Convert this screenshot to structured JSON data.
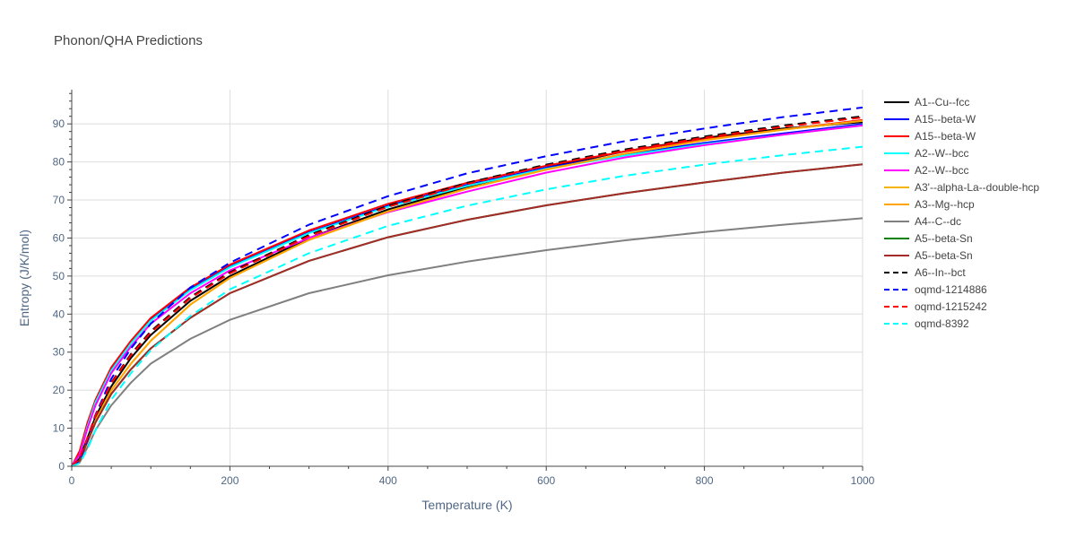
{
  "chart_data": {
    "type": "line",
    "title": "Phonon/QHA Predictions",
    "xlabel": "Temperature (K)",
    "ylabel": "Entropy (J/K/mol)",
    "xlim": [
      0,
      1000
    ],
    "ylim": [
      0,
      99
    ],
    "x_ticks": [
      0,
      200,
      400,
      600,
      800,
      1000
    ],
    "y_ticks": [
      0,
      10,
      20,
      30,
      40,
      50,
      60,
      70,
      80,
      90
    ],
    "grid": true,
    "legend_position": "right",
    "series": [
      {
        "name": "A1--Cu--fcc",
        "color": "#000000",
        "dash": "solid",
        "x": [
          0,
          10,
          20,
          30,
          50,
          75,
          100,
          150,
          200,
          300,
          400,
          500,
          600,
          700,
          800,
          900,
          1000
        ],
        "y": [
          0,
          2.0,
          7.5,
          13.0,
          21.0,
          28.5,
          34.5,
          43.5,
          50.0,
          60.0,
          67.5,
          73.5,
          78.5,
          82.8,
          86.3,
          88.8,
          90.5
        ]
      },
      {
        "name": "A15--beta-W",
        "color": "#0000ff",
        "dash": "solid",
        "x": [
          0,
          10,
          20,
          30,
          50,
          75,
          100,
          150,
          200,
          300,
          400,
          500,
          600,
          700,
          800,
          900,
          1000
        ],
        "y": [
          0,
          3.5,
          11.0,
          17.0,
          25.5,
          32.5,
          38.5,
          46.5,
          52.5,
          61.5,
          68.5,
          74.0,
          78.5,
          82.0,
          85.0,
          87.5,
          90.0
        ]
      },
      {
        "name": "A15--beta-W",
        "color": "#ff0000",
        "dash": "solid",
        "x": [
          0,
          10,
          20,
          30,
          50,
          75,
          100,
          150,
          200,
          300,
          400,
          500,
          600,
          700,
          800,
          900,
          1000
        ],
        "y": [
          0,
          4.0,
          11.5,
          17.5,
          26.0,
          33.0,
          39.0,
          47.0,
          53.0,
          62.0,
          69.0,
          74.5,
          79.0,
          82.8,
          86.0,
          88.5,
          91.0
        ]
      },
      {
        "name": "A2--W--bcc",
        "color": "#00ffff",
        "dash": "solid",
        "x": [
          0,
          10,
          20,
          30,
          50,
          75,
          100,
          150,
          200,
          300,
          400,
          500,
          600,
          700,
          800,
          900,
          1000
        ],
        "y": [
          0,
          3.0,
          10.5,
          16.8,
          25.2,
          32.3,
          38.3,
          46.3,
          52.3,
          61.3,
          68.2,
          73.7,
          78.2,
          81.7,
          84.7,
          87.2,
          89.7
        ]
      },
      {
        "name": "A2--W--bcc",
        "color": "#ff00ff",
        "dash": "solid",
        "x": [
          0,
          10,
          20,
          30,
          50,
          75,
          100,
          150,
          200,
          300,
          400,
          500,
          600,
          700,
          800,
          900,
          1000
        ],
        "y": [
          0,
          3.0,
          10.0,
          16.0,
          24.5,
          31.5,
          37.5,
          45.5,
          51.5,
          60.0,
          66.8,
          72.2,
          77.2,
          81.2,
          84.4,
          87.2,
          89.6
        ]
      },
      {
        "name": "A3'--alpha-La--double-hcp",
        "color": "#f5b400",
        "dash": "solid",
        "x": [
          0,
          10,
          20,
          30,
          50,
          75,
          100,
          150,
          200,
          300,
          400,
          500,
          600,
          700,
          800,
          900,
          1000
        ],
        "y": [
          0,
          1.5,
          6.5,
          12.0,
          20.0,
          27.0,
          33.0,
          42.5,
          49.5,
          59.5,
          67.0,
          73.0,
          78.0,
          82.2,
          85.7,
          88.5,
          90.8
        ]
      },
      {
        "name": "A3--Mg--hcp",
        "color": "#ffa500",
        "dash": "solid",
        "x": [
          0,
          10,
          20,
          30,
          50,
          75,
          100,
          150,
          200,
          300,
          400,
          500,
          600,
          700,
          800,
          900,
          1000
        ],
        "y": [
          0,
          1.5,
          6.5,
          12.0,
          20.0,
          27.0,
          33.0,
          42.5,
          49.5,
          59.5,
          67.0,
          73.0,
          78.0,
          82.2,
          85.7,
          88.5,
          90.8
        ]
      },
      {
        "name": "A4--C--dc",
        "color": "#808080",
        "dash": "solid",
        "x": [
          0,
          10,
          20,
          30,
          50,
          75,
          100,
          150,
          200,
          300,
          400,
          500,
          600,
          700,
          800,
          900,
          1000
        ],
        "y": [
          0,
          1.0,
          5.0,
          9.5,
          16.0,
          22.0,
          27.0,
          33.5,
          38.5,
          45.5,
          50.2,
          53.8,
          56.8,
          59.4,
          61.6,
          63.5,
          65.2
        ]
      },
      {
        "name": "A5--beta-Sn",
        "color": "#008000",
        "dash": "solid",
        "x": [
          0,
          10,
          20,
          30,
          50,
          75,
          100,
          150,
          200,
          300,
          400,
          500,
          600,
          700,
          800,
          900,
          1000
        ],
        "y": [
          0,
          1.5,
          6.5,
          11.5,
          19.0,
          25.5,
          31.0,
          39.0,
          45.5,
          54.0,
          60.2,
          64.8,
          68.6,
          71.8,
          74.6,
          77.2,
          79.4
        ]
      },
      {
        "name": "A5--beta-Sn",
        "color": "#a52a2a",
        "dash": "solid",
        "x": [
          0,
          10,
          20,
          30,
          50,
          75,
          100,
          150,
          200,
          300,
          400,
          500,
          600,
          700,
          800,
          900,
          1000
        ],
        "y": [
          0,
          1.5,
          6.5,
          11.5,
          19.0,
          25.5,
          31.0,
          39.0,
          45.5,
          54.0,
          60.2,
          64.8,
          68.6,
          71.8,
          74.6,
          77.2,
          79.4
        ]
      },
      {
        "name": "A6--In--bct",
        "color": "#000000",
        "dash": "dash",
        "x": [
          0,
          10,
          20,
          30,
          50,
          75,
          100,
          150,
          200,
          300,
          400,
          500,
          600,
          700,
          800,
          900,
          1000
        ],
        "y": [
          0,
          2.0,
          7.5,
          13.5,
          22.0,
          29.5,
          35.5,
          44.5,
          51.0,
          60.8,
          68.5,
          74.5,
          79.3,
          83.3,
          86.7,
          89.6,
          92.0
        ]
      },
      {
        "name": "oqmd-1214886",
        "color": "#0000ff",
        "dash": "dash",
        "x": [
          0,
          10,
          20,
          30,
          50,
          75,
          100,
          150,
          200,
          300,
          400,
          500,
          600,
          700,
          800,
          900,
          1000
        ],
        "y": [
          0,
          1.5,
          7.0,
          13.5,
          23.0,
          31.0,
          37.5,
          47.0,
          53.5,
          63.5,
          71.0,
          77.0,
          81.5,
          85.5,
          88.8,
          91.8,
          94.3
        ]
      },
      {
        "name": "oqmd-1215242",
        "color": "#ff0000",
        "dash": "dash",
        "x": [
          0,
          10,
          20,
          30,
          50,
          75,
          100,
          150,
          200,
          300,
          400,
          500,
          600,
          700,
          800,
          900,
          1000
        ],
        "y": [
          0,
          2.0,
          7.5,
          13.3,
          21.8,
          29.2,
          35.2,
          44.2,
          50.7,
          60.5,
          68.2,
          74.2,
          79.0,
          83.0,
          86.4,
          89.3,
          91.7
        ]
      },
      {
        "name": "oqmd-8392",
        "color": "#00ffff",
        "dash": "dash",
        "x": [
          0,
          10,
          20,
          30,
          50,
          75,
          100,
          150,
          200,
          300,
          400,
          500,
          600,
          700,
          800,
          900,
          1000
        ],
        "y": [
          0,
          0.8,
          4.5,
          9.5,
          17.5,
          24.5,
          30.5,
          39.5,
          46.5,
          56.0,
          63.2,
          68.5,
          72.8,
          76.4,
          79.3,
          81.8,
          84.0
        ]
      }
    ]
  }
}
